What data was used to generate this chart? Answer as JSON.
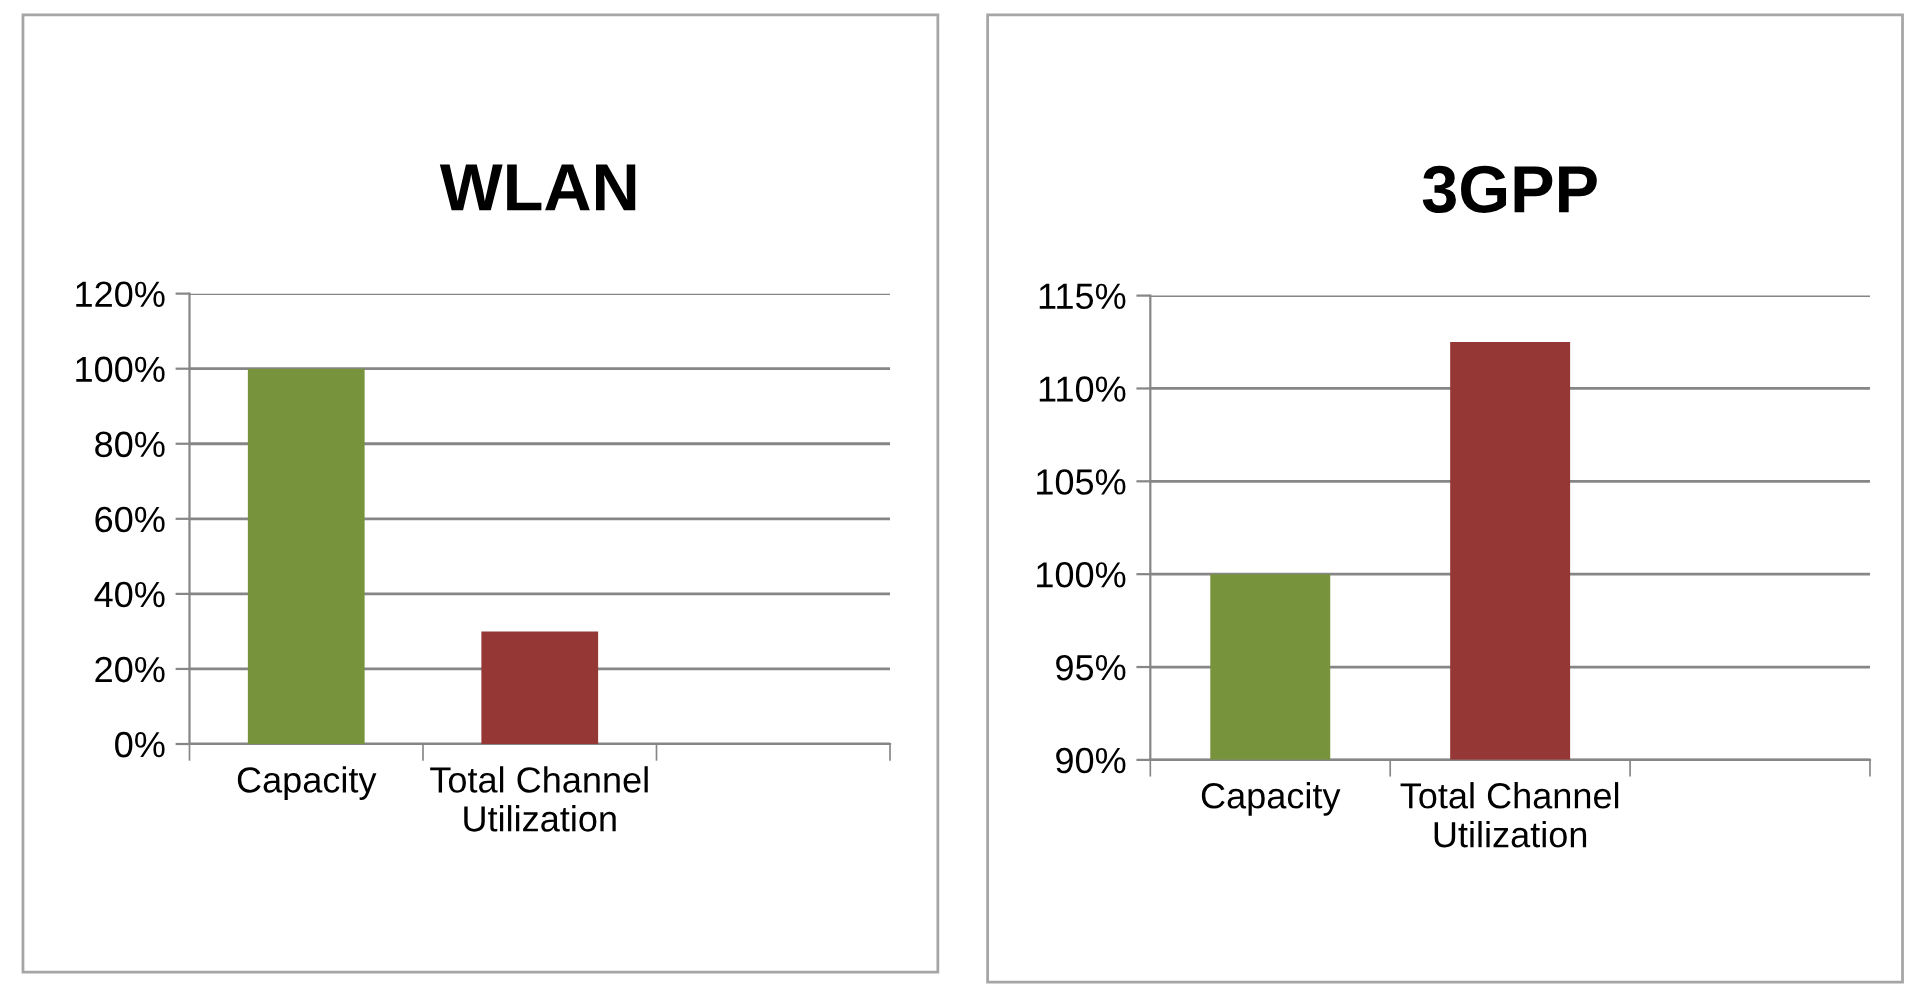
{
  "chart_data": [
    {
      "type": "bar",
      "title": "WLAN",
      "categories": [
        "Capacity",
        "Total Channel\nUtilization",
        null
      ],
      "values": [
        100,
        30,
        null
      ],
      "colors": [
        "#77933c",
        "#953735",
        "#953735"
      ],
      "ylim": [
        0,
        120
      ],
      "yticks": [
        {
          "value": 0,
          "label": "0%"
        },
        {
          "value": 20,
          "label": "20%"
        },
        {
          "value": 40,
          "label": "40%"
        },
        {
          "value": 60,
          "label": "60%"
        },
        {
          "value": 80,
          "label": "80%"
        },
        {
          "value": 100,
          "label": "100%"
        },
        {
          "value": 120,
          "label": "120%"
        }
      ],
      "grid": "y"
    },
    {
      "type": "bar",
      "title": "3GPP",
      "categories": [
        "Capacity",
        "Total Channel\nUtilization",
        null
      ],
      "values": [
        100,
        112.5,
        null
      ],
      "colors": [
        "#77933c",
        "#953735",
        "#953735"
      ],
      "ylim": [
        90,
        115
      ],
      "yticks": [
        {
          "value": 90,
          "label": "90%"
        },
        {
          "value": 95,
          "label": "95%"
        },
        {
          "value": 100,
          "label": "100%"
        },
        {
          "value": 105,
          "label": "105%"
        },
        {
          "value": 110,
          "label": "110%"
        },
        {
          "value": 115,
          "label": "115%"
        }
      ],
      "grid": "y"
    }
  ]
}
